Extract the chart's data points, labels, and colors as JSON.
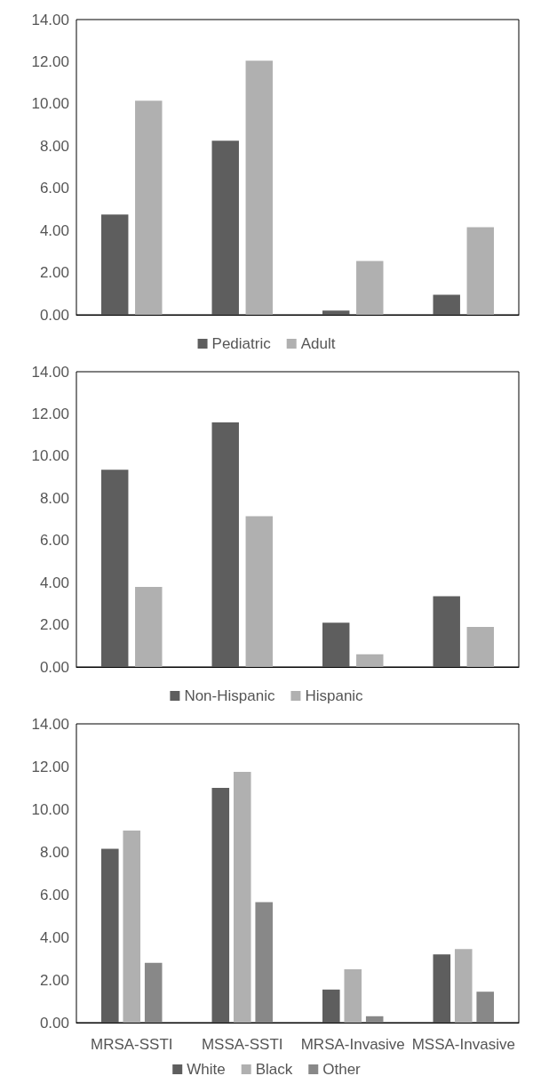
{
  "chart_data": [
    {
      "type": "bar",
      "categories": [
        null,
        null,
        null,
        null
      ],
      "series": [
        {
          "name": "Pediatric",
          "color": "#5e5e5e",
          "values": [
            4.75,
            8.25,
            0.2,
            0.95
          ]
        },
        {
          "name": "Adult",
          "color": "#b0b0b0",
          "values": [
            10.15,
            12.05,
            2.55,
            4.15
          ]
        }
      ],
      "ylim": [
        0,
        14
      ],
      "yticks": [
        {
          "value": 0,
          "label": "0.00"
        },
        {
          "value": 2,
          "label": "2.00"
        },
        {
          "value": 4,
          "label": "4.00"
        },
        {
          "value": 6,
          "label": "6.00"
        },
        {
          "value": 8,
          "label": "8.00"
        },
        {
          "value": 10,
          "label": "10.00"
        },
        {
          "value": 12,
          "label": "12.00"
        },
        {
          "value": 14,
          "label": "14.00"
        }
      ],
      "grid": false,
      "legend": "bottom",
      "tick_labels": "y"
    },
    {
      "type": "bar",
      "categories": [
        null,
        null,
        null,
        null
      ],
      "series": [
        {
          "name": "Non-Hispanic",
          "color": "#5e5e5e",
          "values": [
            9.35,
            11.6,
            2.1,
            3.35
          ]
        },
        {
          "name": "Hispanic",
          "color": "#b0b0b0",
          "values": [
            3.8,
            7.15,
            0.6,
            1.9
          ]
        }
      ],
      "ylim": [
        0,
        14
      ],
      "yticks": [
        {
          "value": 0,
          "label": "0.00"
        },
        {
          "value": 2,
          "label": "2.00"
        },
        {
          "value": 4,
          "label": "4.00"
        },
        {
          "value": 6,
          "label": "6.00"
        },
        {
          "value": 8,
          "label": "8.00"
        },
        {
          "value": 10,
          "label": "10.00"
        },
        {
          "value": 12,
          "label": "12.00"
        },
        {
          "value": 14,
          "label": "14.00"
        }
      ],
      "grid": false,
      "legend": "bottom",
      "tick_labels": "y"
    },
    {
      "type": "bar",
      "categories": [
        "MRSA-SSTI",
        "MSSA-SSTI",
        "MRSA-Invasive",
        "MSSA-Invasive"
      ],
      "series": [
        {
          "name": "White",
          "color": "#5e5e5e",
          "values": [
            8.15,
            11.0,
            1.55,
            3.2
          ]
        },
        {
          "name": "Black",
          "color": "#b0b0b0",
          "values": [
            9.0,
            11.75,
            2.5,
            3.45
          ]
        },
        {
          "name": "Other",
          "color": "#888888",
          "values": [
            2.8,
            5.65,
            0.3,
            1.45
          ]
        }
      ],
      "ylim": [
        0,
        14
      ],
      "yticks": [
        {
          "value": 0,
          "label": "0.00"
        },
        {
          "value": 2,
          "label": "2.00"
        },
        {
          "value": 4,
          "label": "4.00"
        },
        {
          "value": 6,
          "label": "6.00"
        },
        {
          "value": 8,
          "label": "8.00"
        },
        {
          "value": 10,
          "label": "10.00"
        },
        {
          "value": 12,
          "label": "12.00"
        },
        {
          "value": 14,
          "label": "14.00"
        }
      ],
      "grid": false,
      "legend": "bottom"
    }
  ]
}
